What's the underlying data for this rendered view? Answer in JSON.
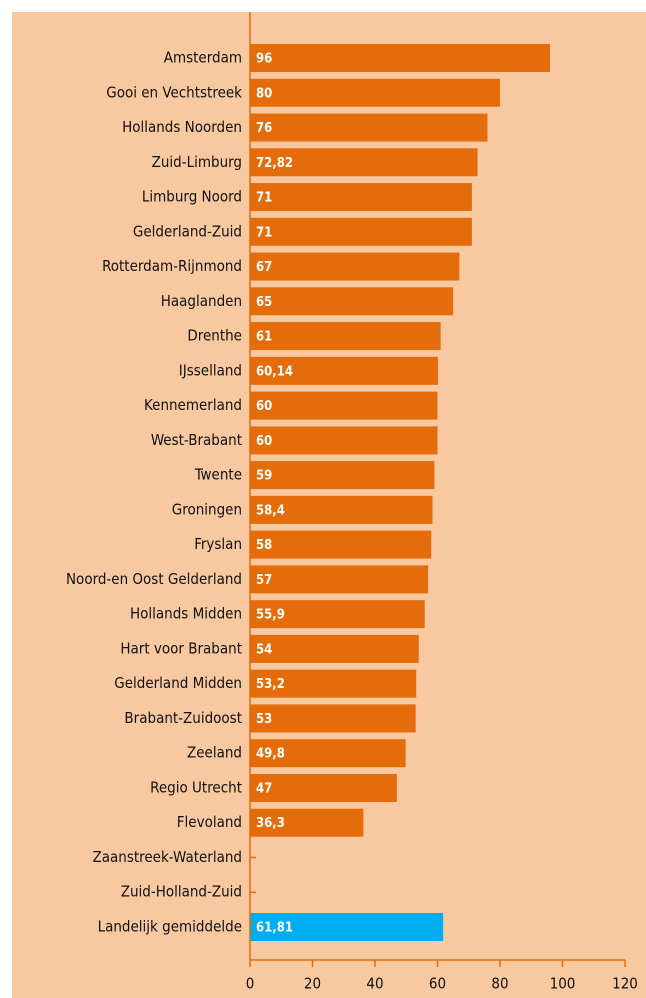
{
  "chart_data": {
    "type": "bar",
    "orientation": "horizontal",
    "categories": [
      "Amsterdam",
      "Gooi en Vechtstreek",
      "Hollands Noorden",
      "Zuid-Limburg",
      "Limburg Noord",
      "Gelderland-Zuid",
      "Rotterdam-Rijnmond",
      "Haaglanden",
      "Drenthe",
      "IJsselland",
      "Kennemerland",
      "West-Brabant",
      "Twente",
      "Groningen",
      "Fryslan",
      "Noord-en Oost Gelderland",
      "Hollands Midden",
      "Hart voor Brabant",
      "Gelderland Midden",
      "Brabant-Zuidoost",
      "Zeeland",
      "Regio Utrecht",
      "Flevoland",
      "Zaanstreek-Waterland",
      "Zuid-Holland-Zuid",
      "Landelijk gemiddelde"
    ],
    "values": [
      96,
      80,
      76,
      72.82,
      71,
      71,
      67,
      65,
      61,
      60.14,
      60,
      60,
      59,
      58.4,
      58,
      57,
      55.9,
      54,
      53.2,
      53,
      49.8,
      47,
      36.3,
      null,
      null,
      61.81
    ],
    "value_labels": [
      "96",
      "80",
      "76",
      "72,82",
      "71",
      "71",
      "67",
      "65",
      "61",
      "60,14",
      "60",
      "60",
      "59",
      "58,4",
      "58",
      "57",
      "55,9",
      "54",
      "53,2",
      "53",
      "49,8",
      "47",
      "36,3",
      null,
      null,
      "61,81"
    ],
    "colors": [
      "#e46c0a",
      "#e46c0a",
      "#e46c0a",
      "#e46c0a",
      "#e46c0a",
      "#e46c0a",
      "#e46c0a",
      "#e46c0a",
      "#e46c0a",
      "#e46c0a",
      "#e46c0a",
      "#e46c0a",
      "#e46c0a",
      "#e46c0a",
      "#e46c0a",
      "#e46c0a",
      "#e46c0a",
      "#e46c0a",
      "#e46c0a",
      "#e46c0a",
      "#e46c0a",
      "#e46c0a",
      "#e46c0a",
      "#e46c0a",
      "#e46c0a",
      "#00aeef"
    ],
    "xlim": [
      0,
      120
    ],
    "xticks": [
      0,
      20,
      40,
      60,
      80,
      100,
      120
    ],
    "grid": false
  }
}
